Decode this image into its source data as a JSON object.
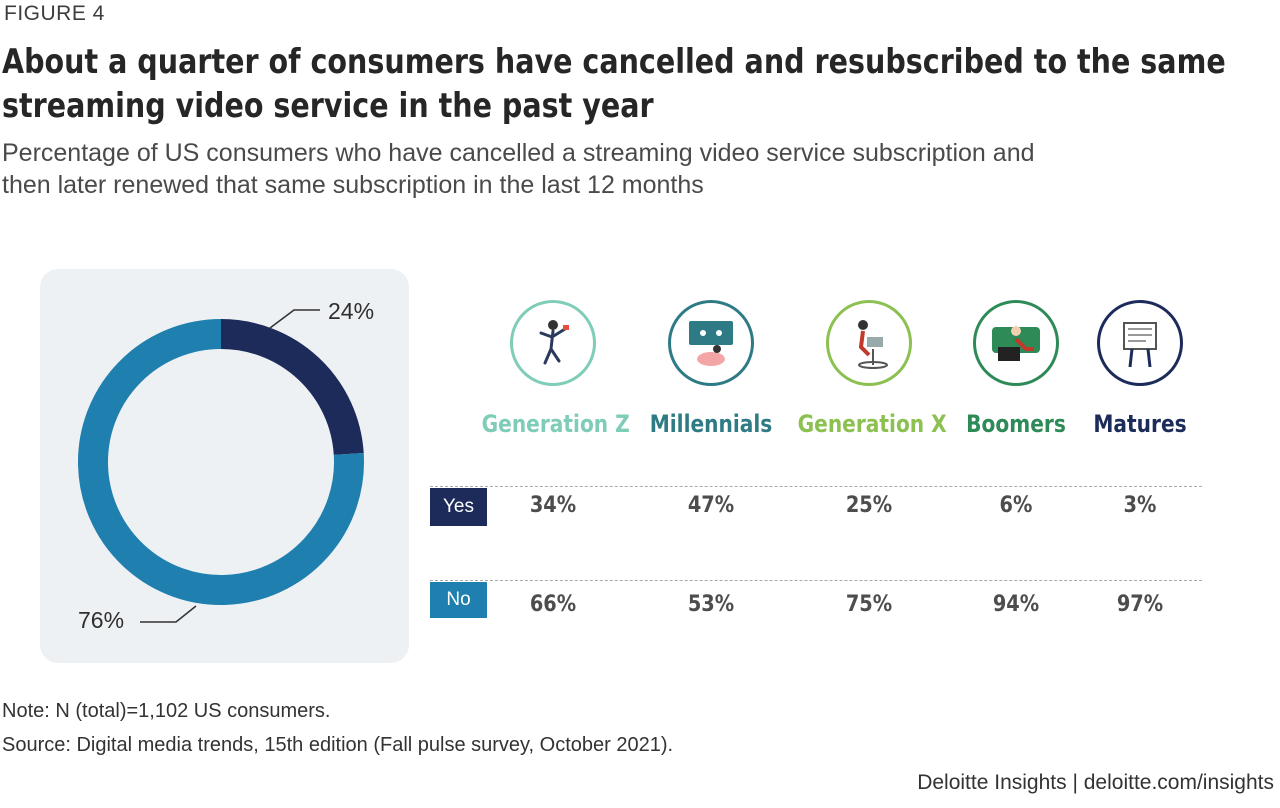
{
  "figure_label": "FIGURE 4",
  "title_line1": "About a quarter of consumers have cancelled and resubscribed to the same",
  "title_line2": "streaming video service in the past year",
  "subtitle_line1": "Percentage of US consumers who have cancelled a streaming video service subscription and",
  "subtitle_line2": "then later renewed that same subscription in the last 12 months",
  "colors": {
    "yes": "#1c2b5a",
    "no": "#1f7fae",
    "genz": "#7fcdb8",
    "millennials": "#2e7b86",
    "genx": "#8cc152",
    "boomers": "#2e8b57",
    "matures": "#1c2b5a"
  },
  "chart_data": [
    {
      "type": "pie",
      "variant": "donut",
      "slices": [
        {
          "label": "24%",
          "value": 24,
          "color": "#1c2b5a"
        },
        {
          "label": "76%",
          "value": 76,
          "color": "#1f7fae"
        }
      ]
    },
    {
      "type": "table",
      "columns": [
        "Generation Z",
        "Millennials",
        "Generation X",
        "Boomers",
        "Matures"
      ],
      "rows": [
        {
          "label": "Yes",
          "values": [
            "34%",
            "47%",
            "25%",
            "6%",
            "3%"
          ]
        },
        {
          "label": "No",
          "values": [
            "66%",
            "53%",
            "75%",
            "94%",
            "97%"
          ]
        }
      ]
    }
  ],
  "generations": [
    {
      "name": "Generation Z",
      "icon": "dancing-person-icon",
      "color": "#7fcdb8"
    },
    {
      "name": "Millennials",
      "icon": "couch-tv-icon",
      "color": "#2e7b86"
    },
    {
      "name": "Generation X",
      "icon": "person-at-desk-icon",
      "color": "#8cc152"
    },
    {
      "name": "Boomers",
      "icon": "person-on-sofa-icon",
      "color": "#2e8b57"
    },
    {
      "name": "Matures",
      "icon": "person-reading-newspaper-icon",
      "color": "#1c2b5a"
    }
  ],
  "note": "Note: N (total)=1,102 US consumers.",
  "source": "Source: Digital media trends, 15th edition (Fall pulse survey, October 2021).",
  "footer": "Deloitte Insights | deloitte.com/insights"
}
